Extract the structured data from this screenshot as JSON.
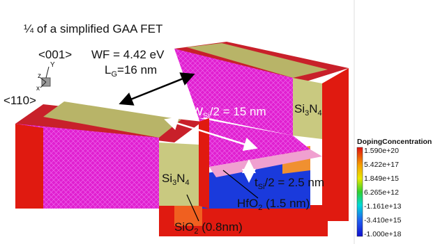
{
  "title": "¼ of a simplified GAA FET",
  "axes": {
    "dir_001": "<001>",
    "dir_110": "<110>",
    "z": "z",
    "y": "Y",
    "x": "x"
  },
  "annotations": {
    "wf": "WF = 4.42 eV",
    "lg": [
      "L",
      "G",
      "=16 nm"
    ],
    "wsi": [
      "W",
      "Si",
      "/2 = 15 nm"
    ],
    "tsi": [
      "t",
      "Si",
      "/2 = 2.5 nm"
    ],
    "hfo2": [
      "HfO",
      "2",
      " (1.5 nm)"
    ],
    "sio2": [
      "SiO",
      "2",
      " (0.8nm)"
    ],
    "si3n4_left": [
      "Si",
      "3",
      "N",
      "4"
    ],
    "si3n4_right": [
      "Si",
      "3",
      "N",
      "4"
    ]
  },
  "colorbar": {
    "title": "DopingConcentration",
    "labels": [
      "1.590e+20",
      "5.422e+17",
      "1.849e+15",
      "6.265e+12",
      "-1.161e+13",
      "-3.410e+15",
      "-1.000e+18"
    ]
  }
}
